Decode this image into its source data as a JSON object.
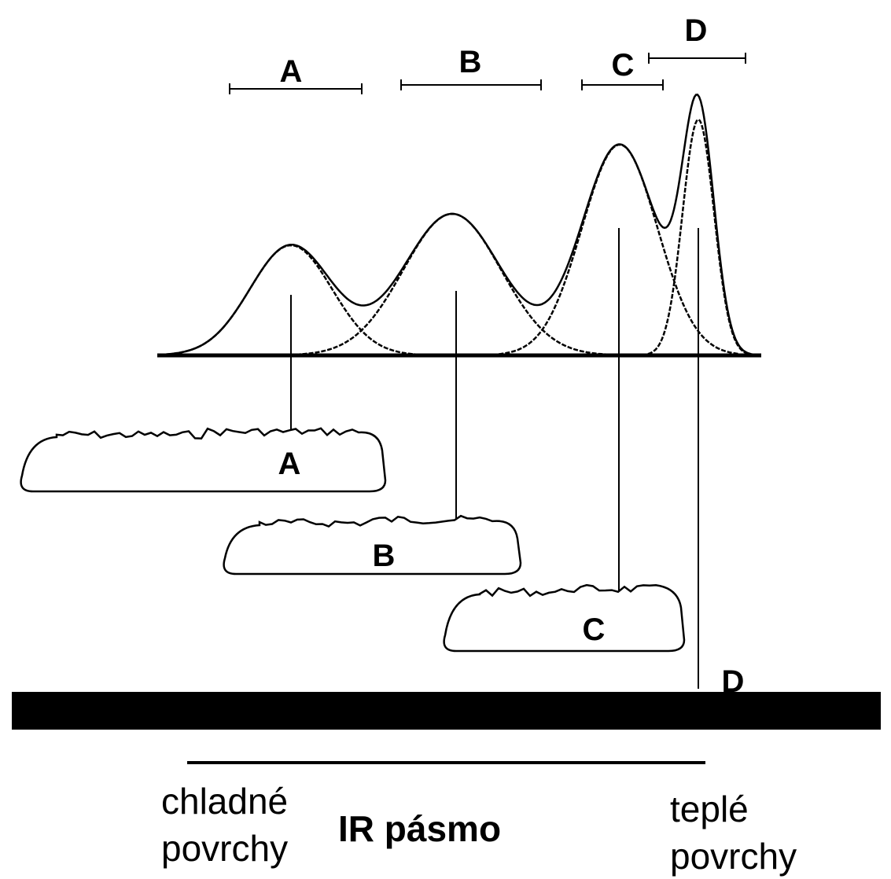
{
  "range_labels": [
    "A",
    "B",
    "C",
    "D"
  ],
  "cloud_labels": [
    "A",
    "B",
    "C"
  ],
  "ground_label": "D",
  "cold_label": [
    "chladné",
    "povrchy"
  ],
  "band_label": "IR pásmo",
  "warm_label": [
    "teplé",
    "povrchy"
  ]
}
